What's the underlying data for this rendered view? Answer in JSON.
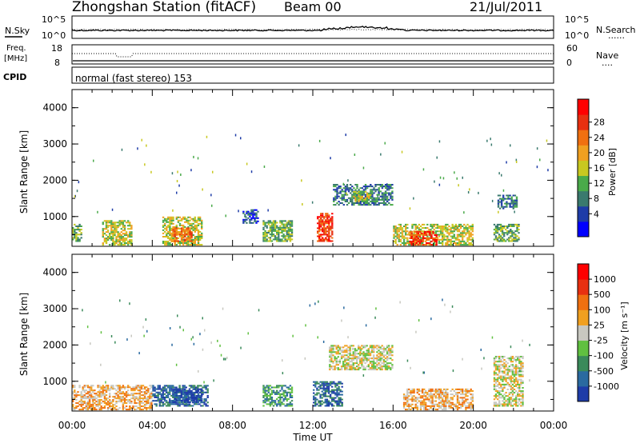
{
  "header": {
    "station": "Zhongshan Station (fitACF)",
    "beam": "Beam 00",
    "date": "21/Jul/2011"
  },
  "top_panel": {
    "left_label": "N.Sky",
    "left_ticks": [
      "10^5",
      "10^0"
    ],
    "right_ticks": [
      "10^5",
      "10^0"
    ],
    "right_label": "N.Search",
    "right_dots": "......"
  },
  "freq_panel": {
    "left_label_1": "Freq.",
    "left_label_2": "[MHz]",
    "left_ticks": [
      "18",
      "8"
    ],
    "right_ticks": [
      "60",
      "0"
    ],
    "right_label": "Nave",
    "right_dots": "...."
  },
  "cpid_panel": {
    "label": "CPID",
    "text": "normal (fast stereo) 153"
  },
  "chart_data": [
    {
      "type": "heatmap",
      "name": "Power",
      "ylabel": "Slant Range [km]",
      "ylim": [
        180,
        4500
      ],
      "y_ticks": [
        "1000",
        "2000",
        "3000",
        "4000"
      ],
      "xlabel": "Time UT",
      "x_ticks": [
        "00:00",
        "04:00",
        "08:00",
        "12:00",
        "16:00",
        "20:00",
        "00:00"
      ],
      "colorbar_label": "Power [dB]",
      "colorbar_ticks": [
        "4",
        "8",
        "12",
        "16",
        "20",
        "24",
        "28"
      ],
      "colorbar_colors": [
        "#0000ff",
        "#1e3ca8",
        "#3a7a6e",
        "#4aaa4a",
        "#c8c820",
        "#f0a020",
        "#f07010",
        "#e83010",
        "#ff0000"
      ],
      "regions": [
        {
          "t0": 0.0,
          "t1": 0.5,
          "r0": 300,
          "r1": 800,
          "level": 3
        },
        {
          "t0": 1.5,
          "t1": 3.0,
          "r0": 200,
          "r1": 900,
          "level": 4
        },
        {
          "t0": 4.5,
          "t1": 6.5,
          "r0": 200,
          "r1": 1000,
          "level": 4
        },
        {
          "t0": 5.0,
          "t1": 6.0,
          "r0": 300,
          "r1": 700,
          "level": 6
        },
        {
          "t0": 8.5,
          "t1": 9.3,
          "r0": 800,
          "r1": 1200,
          "level": 1
        },
        {
          "t0": 9.5,
          "t1": 11.0,
          "r0": 300,
          "r1": 900,
          "level": 3
        },
        {
          "t0": 12.2,
          "t1": 13.0,
          "r0": 300,
          "r1": 1100,
          "level": 7
        },
        {
          "t0": 13.0,
          "t1": 16.0,
          "r0": 1300,
          "r1": 1900,
          "level": 2
        },
        {
          "t0": 14.0,
          "t1": 15.0,
          "r0": 1400,
          "r1": 1700,
          "level": 4
        },
        {
          "t0": 16.0,
          "t1": 20.0,
          "r0": 200,
          "r1": 800,
          "level": 4
        },
        {
          "t0": 16.8,
          "t1": 18.2,
          "r0": 200,
          "r1": 600,
          "level": 7
        },
        {
          "t0": 21.0,
          "t1": 22.3,
          "r0": 300,
          "r1": 800,
          "level": 3
        },
        {
          "t0": 21.2,
          "t1": 22.2,
          "r0": 1200,
          "r1": 1600,
          "level": 2
        }
      ]
    },
    {
      "type": "heatmap",
      "name": "Velocity",
      "ylabel": "Slant Range [km]",
      "ylim": [
        180,
        4500
      ],
      "y_ticks": [
        "1000",
        "2000",
        "3000",
        "4000"
      ],
      "xlabel": "Time UT",
      "x_ticks": [
        "00:00",
        "04:00",
        "08:00",
        "12:00",
        "16:00",
        "20:00",
        "00:00"
      ],
      "colorbar_label": "Velocity [m s⁻¹]",
      "colorbar_ticks": [
        "1000",
        "500",
        "100",
        "25",
        "-25",
        "-100",
        "-500",
        "-1000"
      ],
      "colorbar_colors": [
        "#1e3ca8",
        "#2a6aa0",
        "#3a8a5a",
        "#60c040",
        "#c8c8c0",
        "#f0a020",
        "#f07010",
        "#e83010",
        "#ff0000"
      ],
      "regions": [
        {
          "t0": 0.0,
          "t1": 4.0,
          "r0": 200,
          "r1": 900,
          "level": 5
        },
        {
          "t0": 4.0,
          "t1": 6.8,
          "r0": 300,
          "r1": 900,
          "level": 1
        },
        {
          "t0": 5.0,
          "t1": 6.5,
          "r0": 400,
          "r1": 800,
          "level": 0
        },
        {
          "t0": 9.5,
          "t1": 11.0,
          "r0": 300,
          "r1": 900,
          "level": 2
        },
        {
          "t0": 12.0,
          "t1": 13.5,
          "r0": 300,
          "r1": 1000,
          "level": 1
        },
        {
          "t0": 12.8,
          "t1": 16.0,
          "r0": 1300,
          "r1": 2000,
          "level": 4
        },
        {
          "t0": 16.5,
          "t1": 20.0,
          "r0": 200,
          "r1": 800,
          "level": 5
        },
        {
          "t0": 21.0,
          "t1": 22.5,
          "r0": 300,
          "r1": 1700,
          "level": 4
        }
      ]
    }
  ]
}
